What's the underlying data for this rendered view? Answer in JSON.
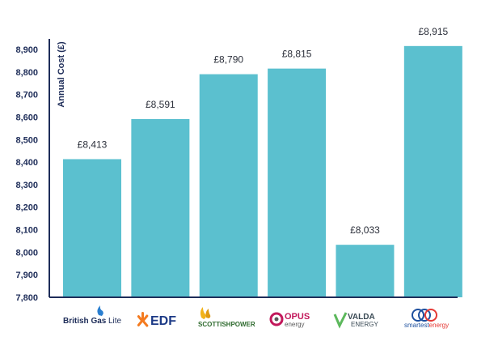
{
  "chart_data": {
    "type": "bar",
    "categories": [
      "British Gas Lite",
      "EDF",
      "SCOTTISHPOWER",
      "OPUS energy",
      "VALDA ENERGY",
      "smartestenergy"
    ],
    "values": [
      8413,
      8591,
      8790,
      8815,
      8033,
      8915
    ],
    "data_labels": [
      "£8,413",
      "£8,591",
      "£8,790",
      "£8,815",
      "£8,033",
      "£8,915"
    ],
    "ylabel": "Annual Cost (£)",
    "ylim": [
      7800,
      8950
    ],
    "yticks": [
      7800,
      7900,
      8000,
      8100,
      8200,
      8300,
      8400,
      8500,
      8600,
      8700,
      8800,
      8900
    ],
    "ytick_labels": [
      "7,800",
      "7,900",
      "8,000",
      "8,100",
      "8,200",
      "8,300",
      "8,400",
      "8,500",
      "8,600",
      "8,700",
      "8,800",
      "8,900"
    ],
    "bar_color": "#5bc0cf",
    "axis_color": "#1e2d59",
    "grid": false
  },
  "logos": {
    "british_gas": {
      "main": "British Gas",
      "suffix": "Lite",
      "color": "#1e2d59",
      "accent": "#2a7fd0"
    },
    "edf": {
      "text": "EDF",
      "color": "#1c3a86",
      "accent": "#f47b20"
    },
    "scottishpower": {
      "text": "SCOTTISHPOWER",
      "color": "#2f6b2f",
      "accent": "#f2b31b"
    },
    "opus": {
      "main": "OPUS",
      "sub": "energy",
      "color": "#c2185b",
      "accent": "#5a5a5a"
    },
    "valda": {
      "main": "VALDA",
      "sub": "ENERGY",
      "color": "#3a4a55",
      "accent": "#5cb85c"
    },
    "smartest": {
      "text_a": "smartest",
      "text_b": "energy",
      "color": "#1d4f9e",
      "accent": "#e53935"
    }
  }
}
